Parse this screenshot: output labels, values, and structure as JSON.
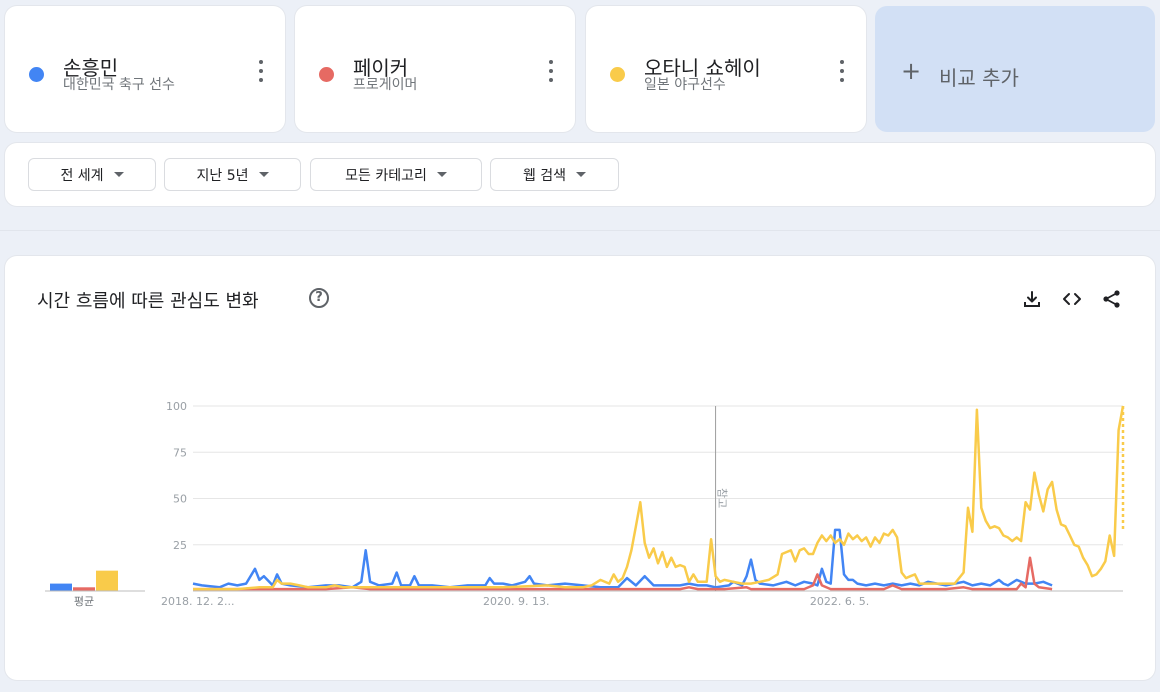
{
  "terms": [
    {
      "name": "손흥민",
      "subtitle": "대한민국 축구 선수",
      "color": "#4285f4"
    },
    {
      "name": "페이커",
      "subtitle": "프로게이머",
      "color": "#e66a63"
    },
    {
      "name": "오타니 쇼헤이",
      "subtitle": "일본 야구선수",
      "color": "#f9cb4a"
    }
  ],
  "add_compare_label": "비교 추가",
  "filters": {
    "region": "전 세계",
    "period": "지난 5년",
    "category": "모든 카테고리",
    "search_type": "웹 검색"
  },
  "chart_title": "시간 흐름에 따른 관심도 변화",
  "chart_data": {
    "type": "line",
    "x_ticks": [
      "2018. 12. 2...",
      "2020. 9. 13.",
      "2022. 6. 5."
    ],
    "y_ticks": [
      100,
      75,
      50,
      25
    ],
    "ylim": [
      0,
      100
    ],
    "annotation": "참고",
    "average_label": "평균",
    "averages": [
      4,
      2,
      11
    ],
    "series": [
      {
        "name": "손흥민",
        "color": "#4285f4",
        "points": [
          [
            0,
            4
          ],
          [
            2,
            3
          ],
          [
            6,
            2
          ],
          [
            8,
            4
          ],
          [
            10,
            3
          ],
          [
            12,
            4
          ],
          [
            14,
            12
          ],
          [
            15,
            6
          ],
          [
            16,
            8
          ],
          [
            18,
            3
          ],
          [
            19,
            9
          ],
          [
            20,
            4
          ],
          [
            22,
            3
          ],
          [
            26,
            2
          ],
          [
            30,
            3
          ],
          [
            33,
            3
          ],
          [
            36,
            2
          ],
          [
            38,
            5
          ],
          [
            39,
            22
          ],
          [
            40,
            5
          ],
          [
            42,
            3
          ],
          [
            45,
            4
          ],
          [
            46,
            10
          ],
          [
            47,
            3
          ],
          [
            49,
            3
          ],
          [
            50,
            8
          ],
          [
            51,
            3
          ],
          [
            54,
            3
          ],
          [
            58,
            2
          ],
          [
            62,
            3
          ],
          [
            66,
            3
          ],
          [
            67,
            7
          ],
          [
            68,
            4
          ],
          [
            70,
            4
          ],
          [
            72,
            3
          ],
          [
            75,
            5
          ],
          [
            76,
            8
          ],
          [
            77,
            4
          ],
          [
            80,
            3
          ],
          [
            84,
            4
          ],
          [
            88,
            3
          ],
          [
            92,
            2
          ],
          [
            96,
            2
          ],
          [
            98,
            7
          ],
          [
            100,
            3
          ],
          [
            102,
            8
          ],
          [
            104,
            3
          ],
          [
            106,
            3
          ],
          [
            110,
            3
          ],
          [
            112,
            4
          ],
          [
            114,
            3
          ],
          [
            116,
            3
          ],
          [
            118,
            2
          ],
          [
            121,
            3
          ],
          [
            122,
            5
          ],
          [
            124,
            3
          ],
          [
            125,
            8
          ],
          [
            126,
            17
          ],
          [
            127,
            6
          ],
          [
            128,
            4
          ],
          [
            131,
            3
          ],
          [
            134,
            5
          ],
          [
            136,
            3
          ],
          [
            138,
            5
          ],
          [
            140,
            4
          ],
          [
            141,
            3
          ],
          [
            142,
            12
          ],
          [
            143,
            5
          ],
          [
            144,
            4
          ],
          [
            145,
            33
          ],
          [
            146,
            33
          ],
          [
            147,
            9
          ],
          [
            148,
            6
          ],
          [
            149,
            6
          ],
          [
            150,
            4
          ],
          [
            152,
            3
          ],
          [
            154,
            4
          ],
          [
            156,
            3
          ],
          [
            158,
            4
          ],
          [
            160,
            3
          ],
          [
            162,
            4
          ],
          [
            164,
            3
          ],
          [
            166,
            5
          ],
          [
            168,
            4
          ],
          [
            170,
            3
          ],
          [
            172,
            4
          ],
          [
            174,
            5
          ],
          [
            176,
            3
          ],
          [
            178,
            4
          ],
          [
            180,
            3
          ],
          [
            182,
            6
          ],
          [
            183,
            4
          ],
          [
            184,
            3
          ],
          [
            186,
            6
          ],
          [
            188,
            4
          ],
          [
            190,
            4
          ],
          [
            192,
            5
          ],
          [
            193,
            4
          ],
          [
            194,
            3
          ]
        ]
      },
      {
        "name": "페이커",
        "color": "#e66a63",
        "points": [
          [
            0,
            1
          ],
          [
            20,
            1
          ],
          [
            30,
            1
          ],
          [
            36,
            2
          ],
          [
            40,
            1
          ],
          [
            60,
            1
          ],
          [
            80,
            1
          ],
          [
            100,
            1
          ],
          [
            110,
            1
          ],
          [
            112,
            2
          ],
          [
            114,
            1
          ],
          [
            120,
            1
          ],
          [
            125,
            2
          ],
          [
            126,
            1
          ],
          [
            138,
            1
          ],
          [
            140,
            3
          ],
          [
            141,
            9
          ],
          [
            142,
            3
          ],
          [
            144,
            1
          ],
          [
            150,
            1
          ],
          [
            156,
            1
          ],
          [
            158,
            3
          ],
          [
            160,
            1
          ],
          [
            170,
            1
          ],
          [
            174,
            2
          ],
          [
            176,
            1
          ],
          [
            186,
            1
          ],
          [
            187,
            4
          ],
          [
            188,
            2
          ],
          [
            189,
            18
          ],
          [
            190,
            4
          ],
          [
            191,
            2
          ],
          [
            194,
            1
          ]
        ]
      },
      {
        "name": "오타니 쇼헤이",
        "color": "#f9cb4a",
        "points": [
          [
            0,
            1
          ],
          [
            10,
            1
          ],
          [
            15,
            2
          ],
          [
            18,
            2
          ],
          [
            19,
            6
          ],
          [
            20,
            4
          ],
          [
            22,
            4
          ],
          [
            24,
            3
          ],
          [
            26,
            2
          ],
          [
            30,
            2
          ],
          [
            32,
            3
          ],
          [
            34,
            2
          ],
          [
            40,
            2
          ],
          [
            50,
            2
          ],
          [
            60,
            2
          ],
          [
            70,
            2
          ],
          [
            80,
            3
          ],
          [
            84,
            2
          ],
          [
            88,
            2
          ],
          [
            90,
            3
          ],
          [
            92,
            6
          ],
          [
            94,
            4
          ],
          [
            95,
            9
          ],
          [
            96,
            5
          ],
          [
            97,
            7
          ],
          [
            98,
            13
          ],
          [
            99,
            22
          ],
          [
            100,
            35
          ],
          [
            101,
            48
          ],
          [
            102,
            26
          ],
          [
            103,
            18
          ],
          [
            104,
            23
          ],
          [
            105,
            15
          ],
          [
            106,
            21
          ],
          [
            107,
            13
          ],
          [
            108,
            18
          ],
          [
            109,
            13
          ],
          [
            110,
            14
          ],
          [
            111,
            13
          ],
          [
            112,
            5
          ],
          [
            113,
            9
          ],
          [
            114,
            5
          ],
          [
            116,
            5
          ],
          [
            117,
            28
          ],
          [
            118,
            8
          ],
          [
            119,
            5
          ],
          [
            120,
            6
          ],
          [
            122,
            5
          ],
          [
            124,
            4
          ],
          [
            126,
            4
          ],
          [
            128,
            5
          ],
          [
            130,
            6
          ],
          [
            132,
            9
          ],
          [
            133,
            20
          ],
          [
            134,
            21
          ],
          [
            135,
            22
          ],
          [
            136,
            16
          ],
          [
            137,
            22
          ],
          [
            138,
            23
          ],
          [
            139,
            20
          ],
          [
            140,
            20
          ],
          [
            141,
            26
          ],
          [
            142,
            30
          ],
          [
            143,
            27
          ],
          [
            144,
            30
          ],
          [
            145,
            26
          ],
          [
            146,
            28
          ],
          [
            147,
            25
          ],
          [
            148,
            31
          ],
          [
            149,
            28
          ],
          [
            150,
            30
          ],
          [
            151,
            27
          ],
          [
            152,
            29
          ],
          [
            153,
            24
          ],
          [
            154,
            29
          ],
          [
            155,
            26
          ],
          [
            156,
            31
          ],
          [
            157,
            30
          ],
          [
            158,
            33
          ],
          [
            159,
            29
          ],
          [
            160,
            10
          ],
          [
            161,
            7
          ],
          [
            162,
            8
          ],
          [
            163,
            9
          ],
          [
            164,
            4
          ],
          [
            166,
            4
          ],
          [
            168,
            4
          ],
          [
            170,
            4
          ],
          [
            172,
            4
          ],
          [
            173,
            7
          ],
          [
            174,
            10
          ],
          [
            175,
            45
          ],
          [
            176,
            32
          ],
          [
            177,
            98
          ],
          [
            178,
            45
          ],
          [
            179,
            38
          ],
          [
            180,
            34
          ],
          [
            181,
            35
          ],
          [
            182,
            34
          ],
          [
            183,
            30
          ],
          [
            184,
            29
          ],
          [
            185,
            27
          ],
          [
            186,
            29
          ],
          [
            187,
            27
          ],
          [
            188,
            48
          ],
          [
            189,
            44
          ],
          [
            190,
            64
          ],
          [
            191,
            52
          ],
          [
            192,
            43
          ],
          [
            193,
            55
          ],
          [
            194,
            59
          ],
          [
            195,
            44
          ],
          [
            196,
            36
          ],
          [
            197,
            35
          ],
          [
            198,
            30
          ],
          [
            199,
            25
          ],
          [
            200,
            24
          ],
          [
            201,
            18
          ],
          [
            202,
            14
          ],
          [
            203,
            8
          ],
          [
            204,
            9
          ],
          [
            205,
            12
          ],
          [
            206,
            16
          ],
          [
            207,
            30
          ],
          [
            208,
            19
          ],
          [
            209,
            87
          ],
          [
            210,
            100
          ]
        ]
      }
    ],
    "partial_segment": {
      "series": "오타니 쇼헤이",
      "from": [
        210,
        100
      ],
      "to": [
        210,
        33
      ]
    }
  }
}
